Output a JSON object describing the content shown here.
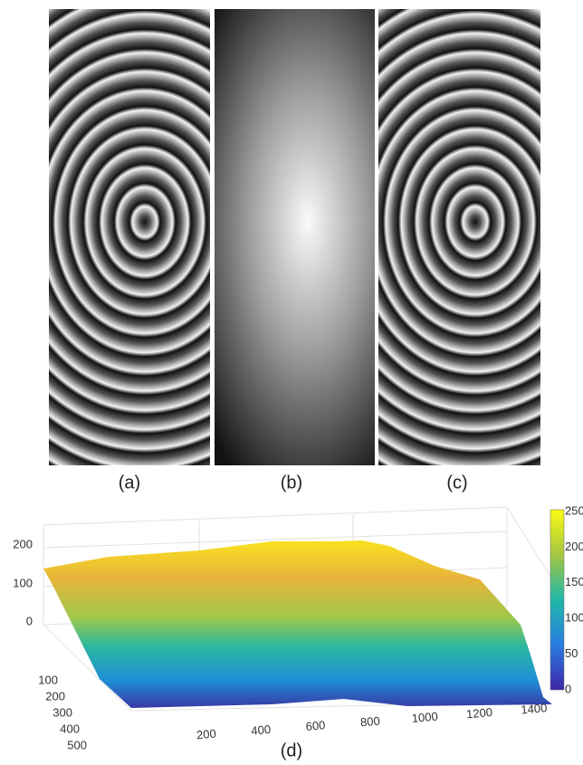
{
  "panels": [
    {
      "label": "(a)"
    },
    {
      "label": "(b)"
    },
    {
      "label": "(c)"
    }
  ],
  "surface": {
    "label": "(d)",
    "z_ticks": [
      0,
      100,
      200
    ],
    "y_ticks": [
      100,
      200,
      300,
      400,
      500
    ],
    "x_ticks": [
      200,
      400,
      600,
      800,
      1000,
      1200,
      1400
    ],
    "colorbar_ticks": [
      0,
      50,
      100,
      150,
      200,
      250
    ]
  }
}
